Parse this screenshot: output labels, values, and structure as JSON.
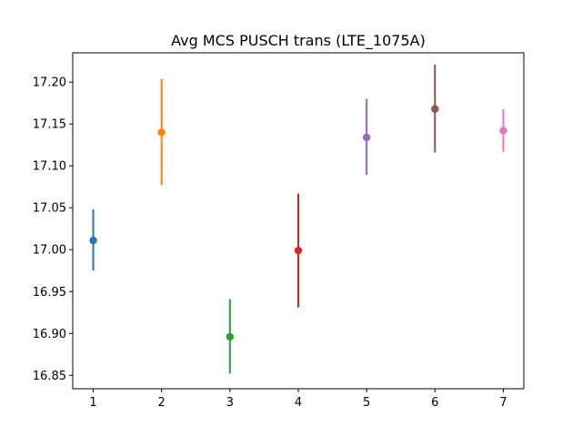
{
  "chart_data": {
    "type": "scatter",
    "title": "Avg MCS PUSCH trans (LTE_1075A)",
    "xlabel": "",
    "ylabel": "",
    "xlim": [
      0.7,
      7.3
    ],
    "ylim": [
      16.834,
      17.235
    ],
    "grid": false,
    "x_ticks": [
      1,
      2,
      3,
      4,
      5,
      6,
      7
    ],
    "x_tick_labels": [
      "1",
      "2",
      "3",
      "4",
      "5",
      "6",
      "7"
    ],
    "y_ticks": [
      16.85,
      16.9,
      16.95,
      17.0,
      17.05,
      17.1,
      17.15,
      17.2
    ],
    "y_tick_labels": [
      "16.85",
      "16.90",
      "16.95",
      "17.00",
      "17.05",
      "17.10",
      "17.15",
      "17.20"
    ],
    "points": [
      {
        "x": 1,
        "y": 17.011,
        "err_low": 16.975,
        "err_high": 17.048,
        "color": "#1f77b4"
      },
      {
        "x": 2,
        "y": 17.14,
        "err_low": 17.077,
        "err_high": 17.204,
        "color": "#ff7f0e"
      },
      {
        "x": 3,
        "y": 16.896,
        "err_low": 16.852,
        "err_high": 16.941,
        "color": "#2ca02c"
      },
      {
        "x": 4,
        "y": 16.999,
        "err_low": 16.931,
        "err_high": 17.067,
        "color": "#d62728"
      },
      {
        "x": 5,
        "y": 17.134,
        "err_low": 17.089,
        "err_high": 17.18,
        "color": "#9467bd"
      },
      {
        "x": 6,
        "y": 17.168,
        "err_low": 17.116,
        "err_high": 17.221,
        "color": "#8c564b"
      },
      {
        "x": 7,
        "y": 17.142,
        "err_low": 17.117,
        "err_high": 17.168,
        "color": "#e377c2"
      }
    ]
  }
}
